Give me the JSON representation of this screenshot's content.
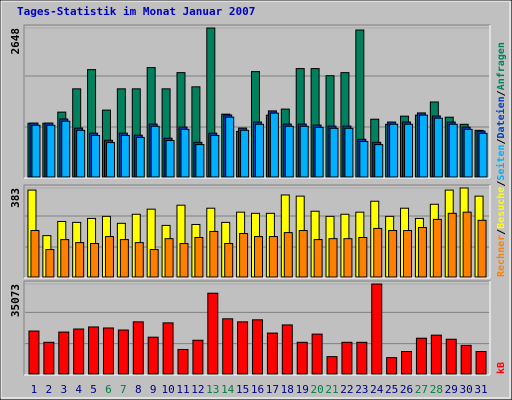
{
  "chart_data": [
    {
      "type": "bar",
      "title": "Tages-Statistik im Monat Januar 2007",
      "ylim": [
        0,
        2648
      ],
      "yticks": [
        2648
      ],
      "series": [
        {
          "name": "Anfragen",
          "color": "#00805c",
          "values": [
            955,
            955,
            1153,
            1567,
            1909,
            1189,
            1567,
            1567,
            1945,
            1567,
            1855,
            1603,
            2648,
            1117,
            811,
            1873,
            1099,
            1207,
            1927,
            1927,
            1801,
            1855,
            2612,
            1027,
            937,
            1081,
            1099,
            1333,
            1063,
            937,
            829
          ]
        },
        {
          "name": "Dateien",
          "color": "#0040c0",
          "values": [
            959,
            959,
            1031,
            869,
            779,
            652,
            779,
            743,
            941,
            689,
            887,
            616,
            779,
            1103,
            869,
            977,
            1175,
            941,
            941,
            923,
            905,
            905,
            670,
            616,
            977,
            977,
            1139,
            1085,
            977,
            887,
            815
          ]
        },
        {
          "name": "Seiten",
          "color": "#00b0ff",
          "values": [
            919,
            919,
            991,
            829,
            739,
            612,
            739,
            703,
            901,
            649,
            847,
            576,
            739,
            1063,
            829,
            937,
            1135,
            901,
            901,
            883,
            865,
            865,
            630,
            576,
            937,
            937,
            1099,
            1045,
            937,
            847,
            775
          ]
        }
      ]
    },
    {
      "type": "bar",
      "ylim": [
        0,
        383
      ],
      "yticks": [
        383
      ],
      "series": [
        {
          "name": "Besuche",
          "color": "#ffff00",
          "values": [
            374,
            178,
            239,
            235,
            252,
            261,
            231,
            270,
            292,
            222,
            309,
            226,
            296,
            235,
            279,
            274,
            274,
            353,
            348,
            283,
            261,
            270,
            279,
            326,
            261,
            296,
            252,
            313,
            374,
            383,
            348
          ]
        },
        {
          "name": "Rechner",
          "color": "#ff8000",
          "values": [
            200,
            118,
            161,
            148,
            144,
            174,
            161,
            148,
            118,
            165,
            144,
            170,
            196,
            144,
            187,
            174,
            174,
            191,
            200,
            161,
            165,
            165,
            170,
            209,
            200,
            200,
            213,
            248,
            274,
            279,
            244
          ]
        }
      ]
    },
    {
      "type": "bar",
      "ylim": [
        0,
        35073
      ],
      "yticks": [
        35073
      ],
      "categories": [
        "1",
        "2",
        "3",
        "4",
        "5",
        "6",
        "7",
        "8",
        "9",
        "10",
        "11",
        "12",
        "13",
        "14",
        "15",
        "16",
        "17",
        "18",
        "19",
        "20",
        "21",
        "22",
        "23",
        "24",
        "25",
        "26",
        "27",
        "28",
        "29",
        "30",
        "31"
      ],
      "category_colors": [
        "#000080",
        "#000080",
        "#000080",
        "#000080",
        "#000080",
        "#008040",
        "#008040",
        "#000080",
        "#000080",
        "#000080",
        "#000080",
        "#000080",
        "#008040",
        "#008040",
        "#000080",
        "#000080",
        "#000080",
        "#000080",
        "#000080",
        "#008040",
        "#008040",
        "#000080",
        "#000080",
        "#000080",
        "#000080",
        "#000080",
        "#008040",
        "#008040",
        "#000080",
        "#000080",
        "#000080"
      ],
      "series": [
        {
          "name": "kB",
          "color": "#ff0000",
          "values": [
            16740,
            12355,
            16341,
            17537,
            18334,
            17935,
            17138,
            20327,
            14348,
            19928,
            9565,
            13152,
            31486,
            21522,
            20327,
            21123,
            15942,
            19131,
            12355,
            15544,
            6775,
            12355,
            12355,
            35073,
            6377,
            8768,
            13949,
            15145,
            13551,
            11160,
            8768
          ]
        }
      ]
    }
  ]
}
